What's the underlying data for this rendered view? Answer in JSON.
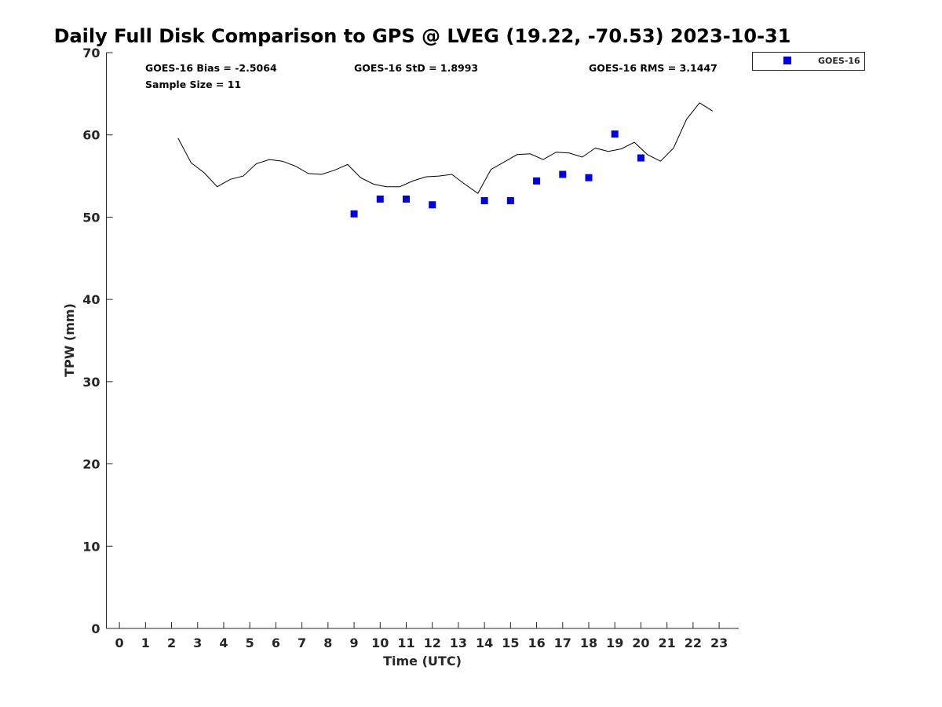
{
  "chart_data": {
    "type": "scatter",
    "title": "Daily Full Disk Comparison to GPS @ LVEG (19.22, -70.53) 2023-10-31",
    "xlabel": "Time (UTC)",
    "ylabel": "TPW (mm)",
    "xlim": [
      -0.5,
      23.75
    ],
    "ylim": [
      0,
      70
    ],
    "x_ticks": [
      "0",
      "1",
      "2",
      "3",
      "4",
      "5",
      "6",
      "7",
      "8",
      "9",
      "10",
      "11",
      "12",
      "13",
      "14",
      "15",
      "16",
      "17",
      "18",
      "19",
      "20",
      "21",
      "22",
      "23"
    ],
    "y_ticks": [
      "0",
      "10",
      "20",
      "30",
      "40",
      "50",
      "60",
      "70"
    ],
    "grid": false,
    "legend_position": "top-right-outside",
    "stats": {
      "bias": "GOES-16 Bias = -2.5064",
      "std": "GOES-16 StD = 1.8993",
      "rms": "GOES-16 RMS = 3.1447",
      "sample_size": "Sample Size = 11"
    },
    "series": [
      {
        "name": "GOES-16",
        "type": "scatter",
        "marker": "square",
        "color": "#0000dd",
        "x": [
          9,
          10,
          11,
          12,
          14,
          15,
          16,
          17,
          18,
          19,
          20
        ],
        "y": [
          50.4,
          52.2,
          52.2,
          51.5,
          52.0,
          52.0,
          54.4,
          55.2,
          54.8,
          60.1,
          57.2
        ]
      },
      {
        "type": "line",
        "color": "#000000",
        "x": [
          2.25,
          2.75,
          3.25,
          3.75,
          4.25,
          4.75,
          5.25,
          5.75,
          6.25,
          6.75,
          7.25,
          7.75,
          8.25,
          8.75,
          9.25,
          9.75,
          10.25,
          10.75,
          11.25,
          11.75,
          12.25,
          12.75,
          13.25,
          13.75,
          14.25,
          14.75,
          15.25,
          15.75,
          16.25,
          16.75,
          17.25,
          17.75,
          18.25,
          18.75,
          19.25,
          19.75,
          20.25,
          20.75,
          21.25,
          21.75,
          22.25,
          22.75
        ],
        "y": [
          59.6,
          56.6,
          55.4,
          53.7,
          54.6,
          55.0,
          56.5,
          57.0,
          56.8,
          56.2,
          55.3,
          55.2,
          55.7,
          56.4,
          54.8,
          54.0,
          53.7,
          53.7,
          54.4,
          54.9,
          55.0,
          55.2,
          54.0,
          52.9,
          55.8,
          56.7,
          57.6,
          57.7,
          57.0,
          57.9,
          57.8,
          57.3,
          58.4,
          58.0,
          58.3,
          59.1,
          57.6,
          56.8,
          58.4,
          61.9,
          63.9,
          62.9
        ]
      }
    ]
  }
}
